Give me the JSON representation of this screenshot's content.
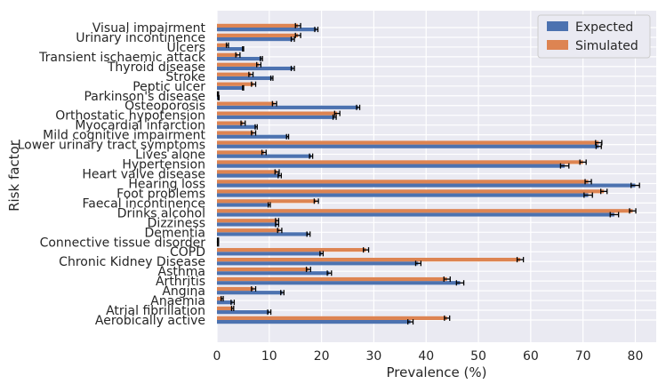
{
  "chart_data": {
    "type": "bar",
    "orientation": "horizontal",
    "xlabel": "Prevalence (%)",
    "ylabel": "Risk factor",
    "xlim": [
      0,
      84
    ],
    "xticks": [
      0,
      10,
      20,
      30,
      40,
      50,
      60,
      70,
      80
    ],
    "grid": true,
    "legend_position": "top-right",
    "categories": [
      "Aerobically active",
      "Atrial fibrillation",
      "Anaemia",
      "Angina",
      "Arthritis",
      "Asthma",
      "Chronic Kidney Disease",
      "COPD",
      "Connective tissue disorder",
      "Dementia",
      "Dizziness",
      "Drinks alcohol",
      "Faecal incontinence",
      "Foot problems",
      "Hearing loss",
      "Heart valve disease",
      "Hypertension",
      "Lives alone",
      "Lower urinary tract symptoms",
      "Mild cognitive impairment",
      "Myocardial infarction",
      "Orthostatic hypotension",
      "Osteoporosis",
      "Parkinson's disease",
      "Peptic ulcer",
      "Stroke",
      "Thyroid disease",
      "Transient ischaemic attack",
      "Ulcers",
      "Urinary incontinence",
      "Visual impairment"
    ],
    "series": [
      {
        "name": "Expected",
        "color": "#4c72b0",
        "values": [
          37.0,
          10.0,
          3.0,
          12.5,
          46.5,
          21.5,
          38.5,
          20.0,
          0.2,
          17.5,
          11.5,
          76.0,
          10.0,
          71.0,
          80.0,
          12.0,
          66.5,
          18.0,
          73.0,
          13.5,
          7.5,
          22.5,
          27.0,
          0.3,
          5.0,
          10.5,
          14.5,
          8.5,
          5.0,
          14.5,
          19.0
        ],
        "errors": [
          0.5,
          0.3,
          0.3,
          0.3,
          0.7,
          0.4,
          0.5,
          0.3,
          0.1,
          0.3,
          0.3,
          0.8,
          0.2,
          0.8,
          0.8,
          0.3,
          0.8,
          0.3,
          0.5,
          0.2,
          0.2,
          0.3,
          0.3,
          0.1,
          0.1,
          0.2,
          0.3,
          0.2,
          0.1,
          0.3,
          0.3
        ]
      },
      {
        "name": "Simulated",
        "color": "#dd8452",
        "values": [
          44.0,
          3.0,
          1.0,
          7.0,
          44.0,
          17.5,
          58.0,
          28.5,
          0.2,
          12.0,
          11.5,
          79.5,
          19.0,
          74.0,
          71.0,
          11.5,
          70.0,
          9.0,
          73.0,
          7.0,
          5.0,
          23.0,
          11.0,
          0.2,
          7.0,
          6.5,
          8.0,
          4.0,
          2.0,
          15.5,
          15.5
        ],
        "errors": [
          0.5,
          0.2,
          0.2,
          0.4,
          0.6,
          0.4,
          0.6,
          0.5,
          0.1,
          0.4,
          0.3,
          0.6,
          0.4,
          0.6,
          0.6,
          0.4,
          0.6,
          0.4,
          0.6,
          0.4,
          0.4,
          0.5,
          0.4,
          0.1,
          0.4,
          0.4,
          0.4,
          0.4,
          0.2,
          0.5,
          0.5
        ]
      }
    ]
  }
}
